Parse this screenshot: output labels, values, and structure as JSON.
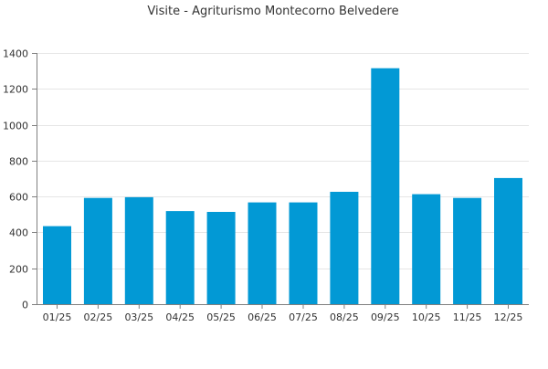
{
  "chart_data": {
    "type": "bar",
    "title": "Visite - Agriturismo Montecorno Belvedere",
    "xlabel": "",
    "ylabel": "",
    "categories": [
      "01/25",
      "02/25",
      "03/25",
      "04/25",
      "05/25",
      "06/25",
      "07/25",
      "08/25",
      "09/25",
      "10/25",
      "11/25",
      "12/25"
    ],
    "values": [
      435,
      592,
      596,
      519,
      514,
      567,
      567,
      626,
      1315,
      613,
      592,
      703
    ],
    "ylim": [
      0,
      1400
    ],
    "yticks": [
      0,
      200,
      400,
      600,
      800,
      1000,
      1200,
      1400
    ],
    "grid": true,
    "legend": "none"
  },
  "colors": {
    "bar": "#0299d5",
    "grid": "#e6e6e6",
    "axis": "#808080",
    "text": "#333333"
  }
}
